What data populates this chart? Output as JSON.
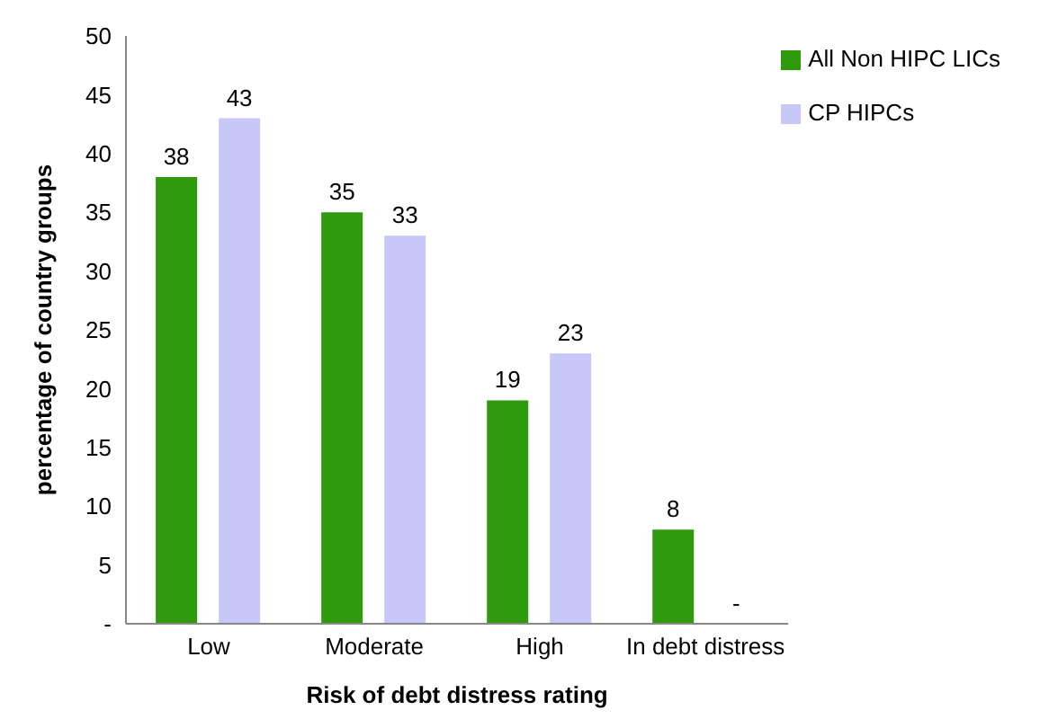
{
  "chart_data": {
    "type": "bar",
    "xlabel": "Risk of debt distress rating",
    "ylabel": "percentage of country groups",
    "categories": [
      "Low",
      "Moderate",
      "High",
      "In debt distress"
    ],
    "series": [
      {
        "name": "All Non HIPC LICs",
        "color": "#2e9a0c",
        "values": [
          38,
          35,
          19,
          8
        ],
        "value_labels": [
          "38",
          "35",
          "19",
          "8"
        ]
      },
      {
        "name": "CP HIPCs",
        "color": "#c8c8f8",
        "values": [
          43,
          33,
          23,
          0
        ],
        "value_labels": [
          "43",
          "33",
          "23",
          "-"
        ]
      }
    ],
    "ylim": [
      0,
      50
    ],
    "yticks": [
      {
        "value": 0,
        "label": "-"
      },
      5,
      10,
      15,
      20,
      25,
      30,
      35,
      40,
      45,
      50
    ],
    "legend": "top right"
  }
}
